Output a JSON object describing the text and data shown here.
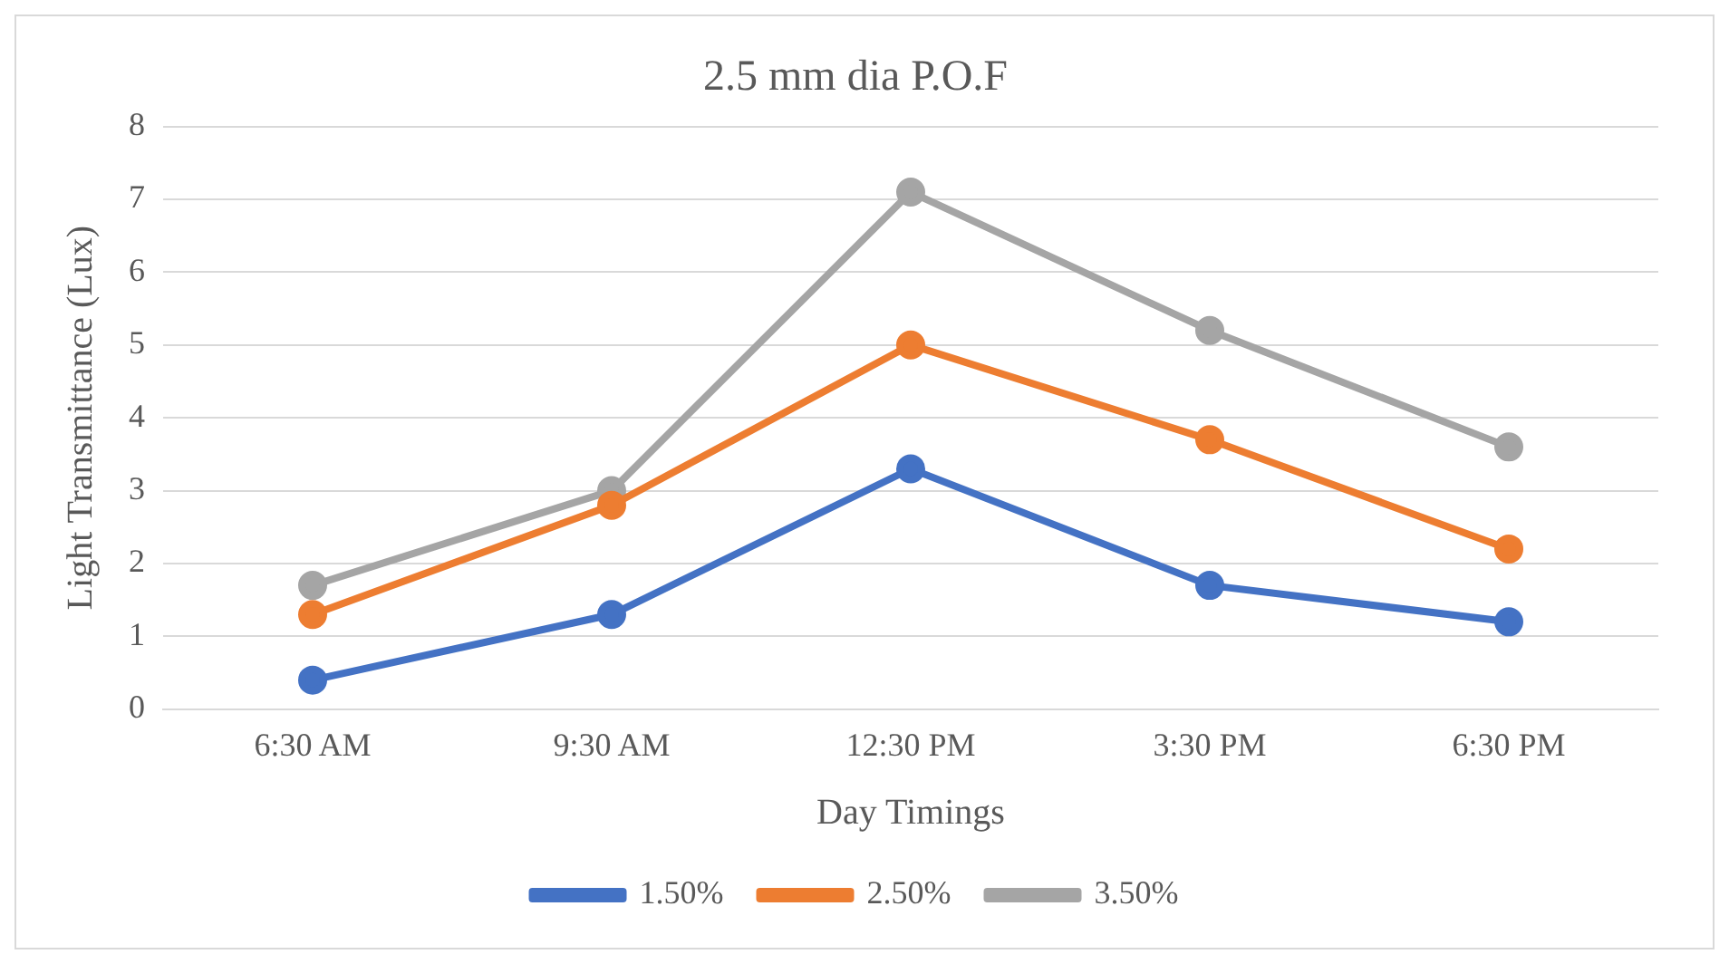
{
  "chart_data": {
    "type": "line",
    "title": "2.5 mm dia P.O.F",
    "xlabel": "Day Timings",
    "ylabel": "Light Transmittance (Lux)",
    "categories": [
      "6:30 AM",
      "9:30 AM",
      "12:30 PM",
      "3:30 PM",
      "6:30 PM"
    ],
    "series": [
      {
        "name": "1.50%",
        "color": "#4472c4",
        "values": [
          0.4,
          1.3,
          3.3,
          1.7,
          1.2
        ]
      },
      {
        "name": "2.50%",
        "color": "#ed7d31",
        "values": [
          1.3,
          2.8,
          5.0,
          3.7,
          2.2
        ]
      },
      {
        "name": "3.50%",
        "color": "#a5a5a5",
        "values": [
          1.7,
          3.0,
          7.1,
          5.2,
          3.6
        ]
      }
    ],
    "ylim": [
      0,
      8
    ],
    "yticks": [
      0,
      1,
      2,
      3,
      4,
      5,
      6,
      7,
      8
    ],
    "grid": "y",
    "legend": "bottom",
    "marker": "circle",
    "line_style": "solid"
  }
}
